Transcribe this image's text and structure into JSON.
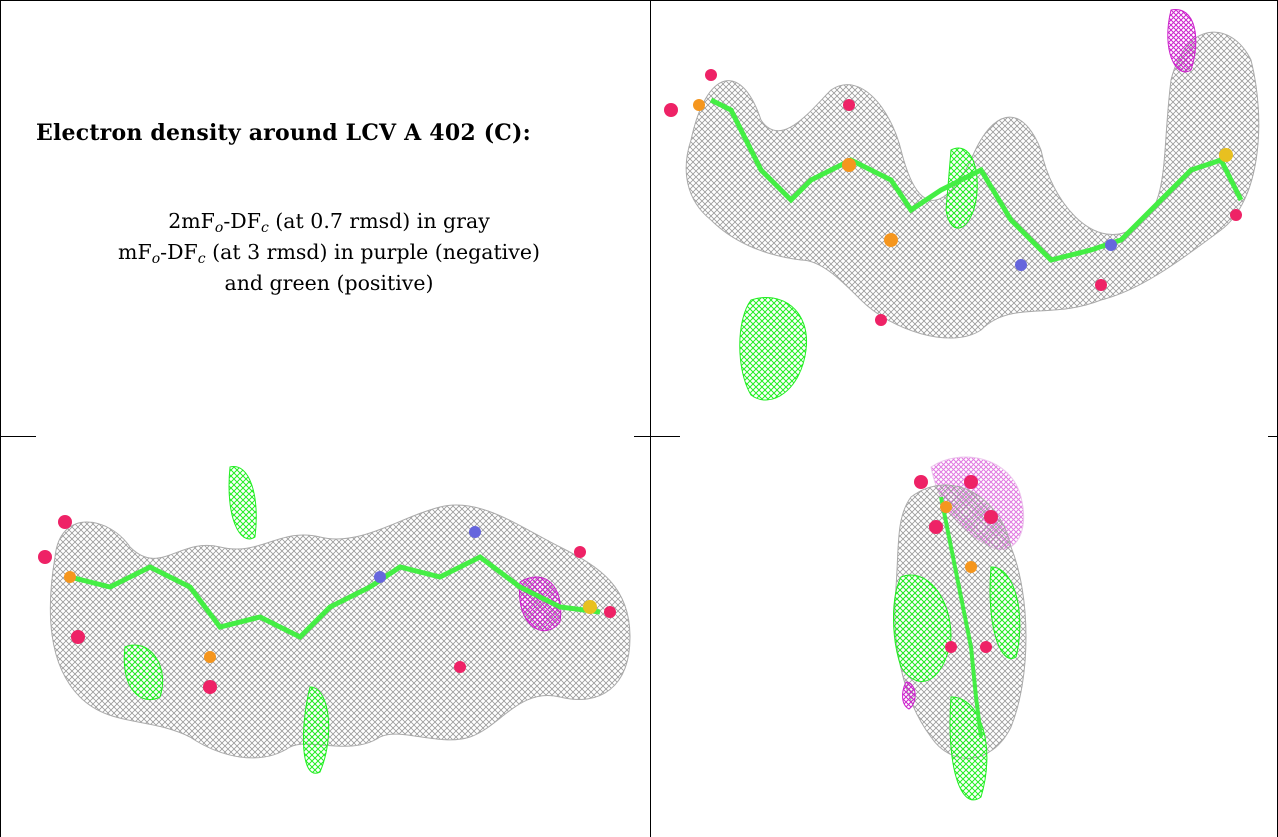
{
  "panel": {
    "title": "Electron density around LCV A 402 (C):",
    "line1": {
      "prefix": "2mF",
      "sub1": "o",
      "mid": "-DF",
      "sub2": "c",
      "suffix": " (at 0.7 rmsd) in gray"
    },
    "line2": {
      "prefix": "mF",
      "sub1": "o",
      "mid": "-DF",
      "sub2": "c",
      "suffix": " (at 3 rmsd) in purple (negative)"
    },
    "line3": "and green (positive)"
  },
  "colors": {
    "mesh_2fofc": "#9a9a9a",
    "mesh_positive": "#22ee22",
    "mesh_negative": "#cc22cc",
    "oxygen": "#ee2266",
    "phosphorus": "#f5961e",
    "carbon": "#44ee44",
    "nitrogen": "#6666dd",
    "sulfur": "#e8c020"
  },
  "images": [
    {
      "name": "density-view-top-right",
      "icon": "molecule-mesh"
    },
    {
      "name": "density-view-bottom-left",
      "icon": "molecule-mesh"
    },
    {
      "name": "density-view-bottom-right",
      "icon": "molecule-mesh"
    }
  ]
}
